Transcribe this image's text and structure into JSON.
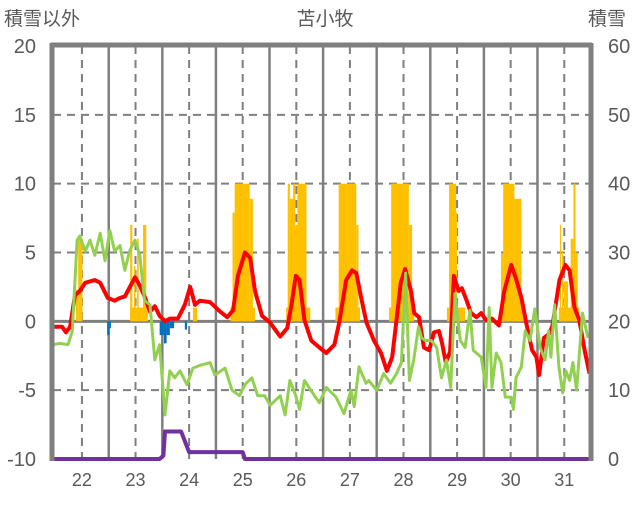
{
  "chart_data": {
    "type": "line",
    "title": "苫小牧",
    "ylabel_left": "積雪以外",
    "ylabel_right": "積雪",
    "xlim": [
      21.46,
      31.48
    ],
    "ylim_left": [
      -10,
      20
    ],
    "ylim_right": [
      0,
      60
    ],
    "x_ticks": [
      22,
      23,
      24,
      25,
      26,
      27,
      28,
      29,
      30,
      31
    ],
    "x_tick_labels": [
      "22",
      "23",
      "24",
      "25",
      "26",
      "27",
      "28",
      "29",
      "30",
      "31"
    ],
    "y_ticks_left": [
      20,
      15,
      10,
      5,
      0,
      -5,
      -10
    ],
    "y_tick_labels_left": [
      "20",
      "15",
      "10",
      "5",
      "0",
      "-5",
      "-10"
    ],
    "y_ticks_right": [
      60,
      50,
      40,
      30,
      20,
      10,
      0
    ],
    "y_tick_labels_right": [
      "60",
      "50",
      "40",
      "30",
      "20",
      "10",
      "0"
    ],
    "grid": true,
    "colors": {
      "red": "#ff0000",
      "green": "#92d050",
      "yellow": "#ffc000",
      "blue": "#0070c0",
      "purple": "#7030a0",
      "grid": "#7f7f7f"
    },
    "series": [
      {
        "name": "red-line",
        "axis": "left",
        "kind": "line",
        "color": "#ff0000",
        "points": [
          [
            21.46,
            -0.4
          ],
          [
            21.63,
            -0.4
          ],
          [
            21.7,
            -0.8
          ],
          [
            21.78,
            -0.4
          ],
          [
            21.87,
            1.9
          ],
          [
            21.96,
            2.2
          ],
          [
            22.06,
            2.8
          ],
          [
            22.24,
            3.0
          ],
          [
            22.34,
            2.8
          ],
          [
            22.48,
            1.7
          ],
          [
            22.61,
            1.5
          ],
          [
            22.71,
            1.7
          ],
          [
            22.8,
            1.8
          ],
          [
            22.99,
            3.2
          ],
          [
            23.08,
            2.6
          ],
          [
            23.17,
            1.8
          ],
          [
            23.27,
            0.7
          ],
          [
            23.36,
            1.1
          ],
          [
            23.45,
            0.4
          ],
          [
            23.55,
            0
          ],
          [
            23.64,
            0.2
          ],
          [
            23.79,
            0.2
          ],
          [
            23.92,
            1.2
          ],
          [
            24.02,
            2.5
          ],
          [
            24.11,
            1.2
          ],
          [
            24.2,
            1.5
          ],
          [
            24.39,
            1.4
          ],
          [
            24.58,
            0.7
          ],
          [
            24.71,
            0.3
          ],
          [
            24.82,
            0.8
          ],
          [
            24.91,
            3.3
          ],
          [
            25.04,
            5.0
          ],
          [
            25.14,
            4.6
          ],
          [
            25.23,
            2.2
          ],
          [
            25.36,
            0.4
          ],
          [
            25.51,
            -0.1
          ],
          [
            25.7,
            -1.1
          ],
          [
            25.83,
            -0.5
          ],
          [
            25.91,
            1.2
          ],
          [
            25.99,
            3.3
          ],
          [
            26.06,
            3.0
          ],
          [
            26.15,
            0.1
          ],
          [
            26.28,
            -1.4
          ],
          [
            26.43,
            -1.9
          ],
          [
            26.56,
            -2.3
          ],
          [
            26.71,
            -1.7
          ],
          [
            26.8,
            -0.1
          ],
          [
            26.93,
            3.0
          ],
          [
            27.04,
            3.7
          ],
          [
            27.12,
            3.5
          ],
          [
            27.21,
            1.7
          ],
          [
            27.31,
            -0.1
          ],
          [
            27.45,
            -1.4
          ],
          [
            27.58,
            -2.3
          ],
          [
            27.69,
            -3.6
          ],
          [
            27.79,
            -2.6
          ],
          [
            27.95,
            2.8
          ],
          [
            28.03,
            3.8
          ],
          [
            28.14,
            2.2
          ],
          [
            28.2,
            0.6
          ],
          [
            28.29,
            0.3
          ],
          [
            28.38,
            -1.9
          ],
          [
            28.48,
            -2.1
          ],
          [
            28.57,
            -0.8
          ],
          [
            28.66,
            -0.7
          ],
          [
            28.72,
            -1.6
          ],
          [
            28.79,
            -3.0
          ],
          [
            28.87,
            -2.2
          ],
          [
            28.94,
            3.3
          ],
          [
            29.03,
            2.2
          ],
          [
            29.09,
            2.4
          ],
          [
            29.18,
            1.5
          ],
          [
            29.26,
            0.6
          ],
          [
            29.36,
            0.3
          ],
          [
            29.45,
            0.6
          ],
          [
            29.54,
            0.1
          ],
          [
            29.65,
            0.2
          ],
          [
            29.78,
            -0.3
          ],
          [
            29.88,
            2.2
          ],
          [
            30.01,
            4.1
          ],
          [
            30.1,
            3.1
          ],
          [
            30.2,
            1.7
          ],
          [
            30.29,
            -0.1
          ],
          [
            30.4,
            -2.1
          ],
          [
            30.48,
            -2.6
          ],
          [
            30.53,
            -3.9
          ],
          [
            30.62,
            -1.2
          ],
          [
            30.72,
            -0.9
          ],
          [
            30.78,
            -0.3
          ],
          [
            30.91,
            3.0
          ],
          [
            31.02,
            4.1
          ],
          [
            31.1,
            3.7
          ],
          [
            31.19,
            1.0
          ],
          [
            31.28,
            0.1
          ],
          [
            31.38,
            -2.1
          ],
          [
            31.47,
            -3.8
          ]
        ]
      },
      {
        "name": "green-line",
        "axis": "left",
        "kind": "line",
        "color": "#92d050",
        "points": [
          [
            21.46,
            -1.7
          ],
          [
            21.59,
            -1.6
          ],
          [
            21.74,
            -1.7
          ],
          [
            21.82,
            -0.7
          ],
          [
            21.91,
            5.9
          ],
          [
            21.96,
            6.2
          ],
          [
            22.06,
            5.1
          ],
          [
            22.15,
            5.9
          ],
          [
            22.24,
            4.8
          ],
          [
            22.34,
            6.4
          ],
          [
            22.43,
            4.4
          ],
          [
            22.52,
            6.6
          ],
          [
            22.61,
            5.1
          ],
          [
            22.71,
            5.5
          ],
          [
            22.8,
            3.7
          ],
          [
            22.89,
            5.1
          ],
          [
            22.99,
            5.9
          ],
          [
            23.08,
            4.8
          ],
          [
            23.17,
            1.5
          ],
          [
            23.27,
            1.2
          ],
          [
            23.36,
            -2.8
          ],
          [
            23.45,
            -1.7
          ],
          [
            23.55,
            -6.8
          ],
          [
            23.64,
            -3.6
          ],
          [
            23.73,
            -4.1
          ],
          [
            23.83,
            -3.6
          ],
          [
            23.96,
            -4.6
          ],
          [
            24.07,
            -3.4
          ],
          [
            24.2,
            -3.2
          ],
          [
            24.39,
            -3.0
          ],
          [
            24.48,
            -3.9
          ],
          [
            24.67,
            -3.4
          ],
          [
            24.8,
            -5.0
          ],
          [
            24.94,
            -5.4
          ],
          [
            25.04,
            -4.6
          ],
          [
            25.17,
            -4.1
          ],
          [
            25.28,
            -5.4
          ],
          [
            25.41,
            -5.4
          ],
          [
            25.51,
            -6.1
          ],
          [
            25.7,
            -5.4
          ],
          [
            25.79,
            -6.8
          ],
          [
            25.88,
            -4.3
          ],
          [
            25.99,
            -5.4
          ],
          [
            26.06,
            -6.4
          ],
          [
            26.15,
            -4.3
          ],
          [
            26.34,
            -5.4
          ],
          [
            26.43,
            -5.9
          ],
          [
            26.56,
            -4.8
          ],
          [
            26.74,
            -5.5
          ],
          [
            26.89,
            -6.7
          ],
          [
            27.02,
            -5.0
          ],
          [
            27.08,
            -6.2
          ],
          [
            27.17,
            -3.3
          ],
          [
            27.3,
            -4.5
          ],
          [
            27.35,
            -4.3
          ],
          [
            27.5,
            -5.0
          ],
          [
            27.63,
            -3.8
          ],
          [
            27.76,
            -4.5
          ],
          [
            27.87,
            -3.8
          ],
          [
            27.96,
            -3.0
          ],
          [
            28.04,
            3.5
          ],
          [
            28.11,
            -4.3
          ],
          [
            28.19,
            -2.8
          ],
          [
            28.28,
            -0.4
          ],
          [
            28.34,
            -1.2
          ],
          [
            28.41,
            -1.4
          ],
          [
            28.52,
            -1.4
          ],
          [
            28.62,
            -1.9
          ],
          [
            28.71,
            -4.1
          ],
          [
            28.8,
            -2.8
          ],
          [
            28.88,
            -4.8
          ],
          [
            28.96,
            2.0
          ],
          [
            29.06,
            -1.4
          ],
          [
            29.15,
            -1.9
          ],
          [
            29.24,
            0.8
          ],
          [
            29.3,
            -2.1
          ],
          [
            29.45,
            -2.6
          ],
          [
            29.54,
            -4.8
          ],
          [
            29.6,
            1.0
          ],
          [
            29.65,
            -4.8
          ],
          [
            29.73,
            -2.3
          ],
          [
            29.82,
            -3.0
          ],
          [
            29.9,
            -5.5
          ],
          [
            30.01,
            -5.5
          ],
          [
            30.05,
            -6.4
          ],
          [
            30.1,
            -4.1
          ],
          [
            30.2,
            -3.3
          ],
          [
            30.27,
            -0.7
          ],
          [
            30.36,
            -1.4
          ],
          [
            30.45,
            0.9
          ],
          [
            30.55,
            -1.9
          ],
          [
            30.64,
            -2.8
          ],
          [
            30.71,
            -0.7
          ],
          [
            30.75,
            -2.6
          ],
          [
            30.82,
            1.2
          ],
          [
            30.9,
            -3.3
          ],
          [
            30.97,
            -5.2
          ],
          [
            31.03,
            -3.6
          ],
          [
            31.1,
            -4.3
          ],
          [
            31.16,
            -3.0
          ],
          [
            31.23,
            -5.0
          ],
          [
            31.34,
            0.6
          ],
          [
            31.44,
            -1.2
          ]
        ]
      },
      {
        "name": "yellow-bars",
        "axis": "left",
        "kind": "bars",
        "color": "#ffc000",
        "bars": [
          [
            21.89,
            21.93,
            2.3
          ],
          [
            21.93,
            22.01,
            6.0
          ],
          [
            22.9,
            23.23,
            1
          ],
          [
            22.9,
            22.94,
            7
          ],
          [
            22.97,
            23.0,
            4
          ],
          [
            23.03,
            23.06,
            6
          ],
          [
            23.14,
            23.2,
            7
          ],
          [
            24.07,
            24.15,
            1
          ],
          [
            24.77,
            25.23,
            1
          ],
          [
            24.81,
            24.85,
            7.9
          ],
          [
            24.85,
            25.13,
            10
          ],
          [
            25.13,
            25.19,
            8.9
          ],
          [
            25.81,
            26.26,
            1
          ],
          [
            25.84,
            25.88,
            10
          ],
          [
            25.88,
            25.94,
            8.9
          ],
          [
            25.94,
            25.98,
            10
          ],
          [
            25.98,
            26.02,
            7
          ],
          [
            26.02,
            26.19,
            10
          ],
          [
            26.73,
            27.19,
            1
          ],
          [
            26.79,
            27.12,
            10
          ],
          [
            27.12,
            27.16,
            7
          ],
          [
            27.73,
            28.2,
            1
          ],
          [
            27.77,
            28.1,
            10
          ],
          [
            28.1,
            28.16,
            7
          ],
          [
            28.81,
            29.15,
            1
          ],
          [
            28.85,
            28.98,
            10
          ],
          [
            28.98,
            29.0,
            7.9
          ],
          [
            29.8,
            30.27,
            1
          ],
          [
            29.82,
            29.86,
            4.9
          ],
          [
            29.86,
            30.07,
            10
          ],
          [
            30.07,
            30.2,
            8.9
          ],
          [
            30.9,
            31.28,
            1
          ],
          [
            30.92,
            30.94,
            7
          ],
          [
            30.96,
            30.98,
            5.1
          ],
          [
            30.99,
            31.07,
            2.9
          ],
          [
            31.12,
            31.17,
            6
          ],
          [
            31.17,
            31.21,
            10
          ],
          [
            31.21,
            31.25,
            5
          ]
        ]
      },
      {
        "name": "blue-bars",
        "axis": "left",
        "kind": "bars",
        "color": "#0070c0",
        "bars": [
          [
            22.47,
            22.51,
            -1
          ],
          [
            22.51,
            22.54,
            -0.5
          ],
          [
            23.45,
            23.53,
            -1
          ],
          [
            23.53,
            23.58,
            -1.6
          ],
          [
            23.58,
            23.64,
            -1.0
          ],
          [
            23.64,
            23.72,
            -0.5
          ],
          [
            23.92,
            23.96,
            -0.6
          ]
        ]
      },
      {
        "name": "purple-line",
        "axis": "right",
        "kind": "line",
        "color": "#7030a0",
        "points": [
          [
            21.46,
            0
          ],
          [
            23.45,
            0
          ],
          [
            23.52,
            0.5
          ],
          [
            23.55,
            4
          ],
          [
            23.85,
            4
          ],
          [
            23.9,
            3
          ],
          [
            24.0,
            1
          ],
          [
            25.0,
            1
          ],
          [
            25.04,
            0
          ],
          [
            31.48,
            0
          ]
        ]
      }
    ]
  }
}
